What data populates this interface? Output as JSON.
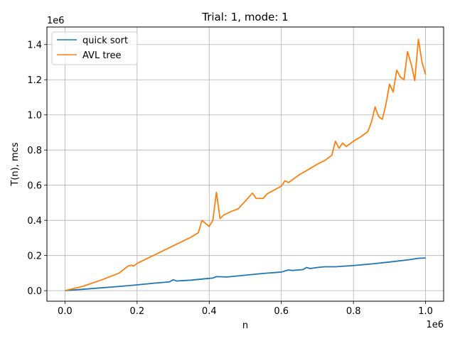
{
  "chart_data": {
    "type": "line",
    "title": "Trial: 1, mode: 1",
    "xlabel": "n",
    "ylabel": "T(n), mcs",
    "x_offset_label": "1e6",
    "y_offset_label": "1e6",
    "xlim": [
      -50000,
      1050000
    ],
    "ylim": [
      -60000,
      1500000
    ],
    "xticks": [
      0,
      200000,
      400000,
      600000,
      800000,
      1000000
    ],
    "xtick_labels": [
      "0.0",
      "0.2",
      "0.4",
      "0.6",
      "0.8",
      "1.0"
    ],
    "yticks": [
      0,
      200000,
      400000,
      600000,
      800000,
      1000000,
      1200000,
      1400000
    ],
    "ytick_labels": [
      "0.0",
      "0.2",
      "0.4",
      "0.6",
      "0.8",
      "1.0",
      "1.2",
      "1.4"
    ],
    "grid": true,
    "legend_position": "top-left",
    "series": [
      {
        "name": "quick sort",
        "color": "#1f77b4",
        "points": [
          [
            0,
            0
          ],
          [
            50000,
            8000
          ],
          [
            100000,
            16000
          ],
          [
            150000,
            24000
          ],
          [
            200000,
            33000
          ],
          [
            250000,
            43000
          ],
          [
            290000,
            50000
          ],
          [
            300000,
            62000
          ],
          [
            310000,
            55000
          ],
          [
            350000,
            60000
          ],
          [
            400000,
            70000
          ],
          [
            410000,
            72000
          ],
          [
            420000,
            80000
          ],
          [
            450000,
            78000
          ],
          [
            500000,
            88000
          ],
          [
            550000,
            98000
          ],
          [
            600000,
            106000
          ],
          [
            620000,
            118000
          ],
          [
            630000,
            115000
          ],
          [
            660000,
            120000
          ],
          [
            670000,
            132000
          ],
          [
            680000,
            126000
          ],
          [
            700000,
            132000
          ],
          [
            720000,
            136000
          ],
          [
            750000,
            136000
          ],
          [
            800000,
            143000
          ],
          [
            850000,
            152000
          ],
          [
            900000,
            163000
          ],
          [
            950000,
            175000
          ],
          [
            980000,
            184000
          ],
          [
            1000000,
            186000
          ]
        ]
      },
      {
        "name": "AVL tree",
        "color": "#ff7f0e",
        "points": [
          [
            0,
            0
          ],
          [
            50000,
            25000
          ],
          [
            100000,
            60000
          ],
          [
            150000,
            100000
          ],
          [
            175000,
            140000
          ],
          [
            185000,
            145000
          ],
          [
            190000,
            140000
          ],
          [
            200000,
            155000
          ],
          [
            250000,
            205000
          ],
          [
            300000,
            255000
          ],
          [
            350000,
            305000
          ],
          [
            370000,
            330000
          ],
          [
            380000,
            400000
          ],
          [
            400000,
            365000
          ],
          [
            410000,
            400000
          ],
          [
            420000,
            560000
          ],
          [
            430000,
            410000
          ],
          [
            440000,
            430000
          ],
          [
            460000,
            450000
          ],
          [
            480000,
            465000
          ],
          [
            500000,
            510000
          ],
          [
            520000,
            555000
          ],
          [
            530000,
            525000
          ],
          [
            550000,
            525000
          ],
          [
            560000,
            550000
          ],
          [
            600000,
            595000
          ],
          [
            610000,
            625000
          ],
          [
            620000,
            615000
          ],
          [
            650000,
            660000
          ],
          [
            680000,
            695000
          ],
          [
            700000,
            720000
          ],
          [
            720000,
            740000
          ],
          [
            740000,
            770000
          ],
          [
            750000,
            850000
          ],
          [
            760000,
            810000
          ],
          [
            770000,
            840000
          ],
          [
            780000,
            820000
          ],
          [
            800000,
            850000
          ],
          [
            820000,
            875000
          ],
          [
            840000,
            905000
          ],
          [
            850000,
            960000
          ],
          [
            860000,
            1045000
          ],
          [
            870000,
            990000
          ],
          [
            880000,
            975000
          ],
          [
            890000,
            1060000
          ],
          [
            900000,
            1175000
          ],
          [
            910000,
            1130000
          ],
          [
            920000,
            1255000
          ],
          [
            930000,
            1215000
          ],
          [
            940000,
            1200000
          ],
          [
            950000,
            1360000
          ],
          [
            960000,
            1290000
          ],
          [
            970000,
            1195000
          ],
          [
            980000,
            1430000
          ],
          [
            990000,
            1300000
          ],
          [
            1000000,
            1230000
          ]
        ]
      }
    ]
  }
}
